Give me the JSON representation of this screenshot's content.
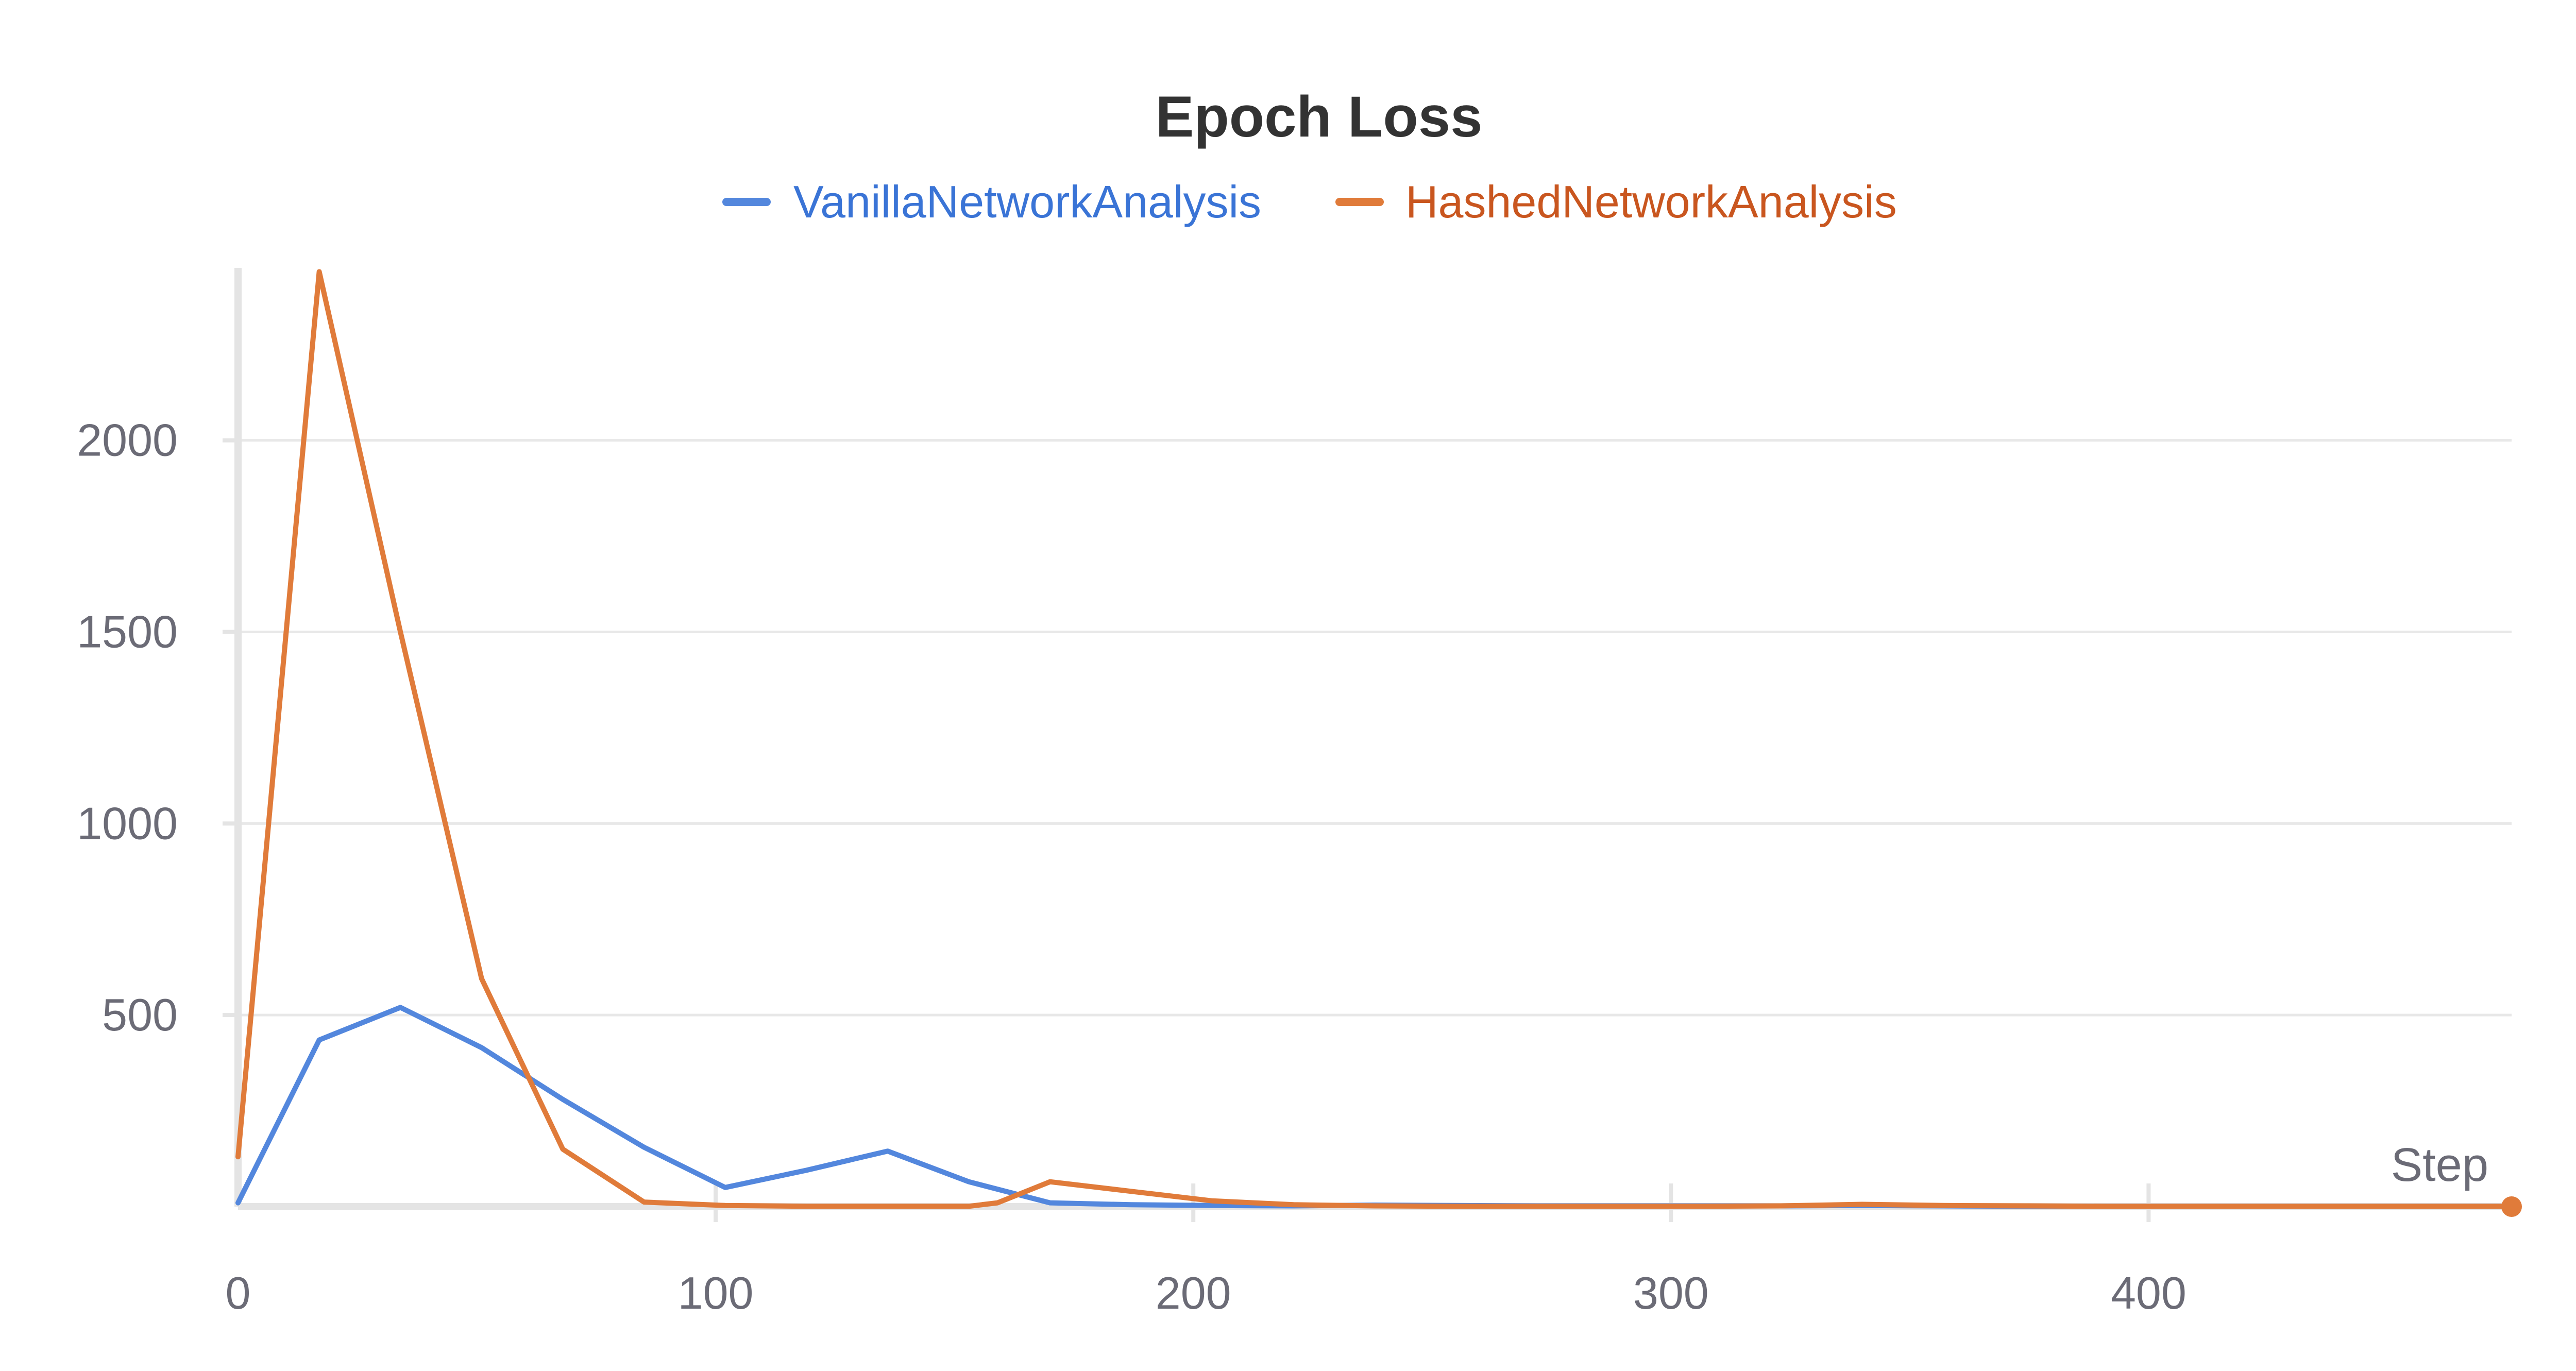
{
  "chart_data": {
    "type": "line",
    "title": "Epoch Loss",
    "xlabel": "Step",
    "ylabel": "",
    "xlim": [
      0,
      476
    ],
    "ylim": [
      0,
      2450
    ],
    "x_ticks": [
      0,
      100,
      200,
      300,
      400
    ],
    "y_ticks": [
      500,
      1000,
      1500,
      2000
    ],
    "grid": true,
    "legend_placement": "top-center",
    "colors": {
      "VanillaNetworkAnalysis": "#5387dd",
      "HashedNetworkAnalysis": "#e07b3a",
      "legend_vanilla_text": "#3a74d6",
      "legend_hashed_text": "#c9561f"
    },
    "series": [
      {
        "name": "VanillaNetworkAnalysis",
        "points": [
          [
            0,
            10
          ],
          [
            17,
            435
          ],
          [
            34,
            520
          ],
          [
            51,
            415
          ],
          [
            68,
            280
          ],
          [
            85,
            155
          ],
          [
            102,
            50
          ],
          [
            119,
            95
          ],
          [
            136,
            145
          ],
          [
            153,
            65
          ],
          [
            170,
            10
          ],
          [
            187,
            5
          ],
          [
            204,
            3
          ],
          [
            221,
            2
          ],
          [
            238,
            4
          ],
          [
            255,
            3
          ],
          [
            272,
            2
          ],
          [
            289,
            2
          ],
          [
            306,
            2
          ],
          [
            323,
            2
          ],
          [
            340,
            3
          ],
          [
            357,
            2
          ],
          [
            374,
            1
          ],
          [
            391,
            1
          ],
          [
            408,
            1
          ],
          [
            425,
            1
          ],
          [
            442,
            1
          ],
          [
            459,
            1
          ],
          [
            476,
            1
          ]
        ]
      },
      {
        "name": "HashedNetworkAnalysis",
        "points": [
          [
            0,
            130
          ],
          [
            17,
            2440
          ],
          [
            34,
            1500
          ],
          [
            51,
            595
          ],
          [
            68,
            150
          ],
          [
            85,
            12
          ],
          [
            102,
            3
          ],
          [
            119,
            1
          ],
          [
            136,
            1
          ],
          [
            153,
            1
          ],
          [
            159,
            10
          ],
          [
            170,
            65
          ],
          [
            187,
            40
          ],
          [
            204,
            15
          ],
          [
            221,
            5
          ],
          [
            238,
            2
          ],
          [
            255,
            1
          ],
          [
            272,
            1
          ],
          [
            289,
            1
          ],
          [
            306,
            1
          ],
          [
            323,
            2
          ],
          [
            340,
            6
          ],
          [
            357,
            3
          ],
          [
            374,
            2
          ],
          [
            391,
            1
          ],
          [
            408,
            1
          ],
          [
            425,
            1
          ],
          [
            442,
            1
          ],
          [
            459,
            1
          ],
          [
            476,
            1
          ]
        ]
      }
    ]
  }
}
